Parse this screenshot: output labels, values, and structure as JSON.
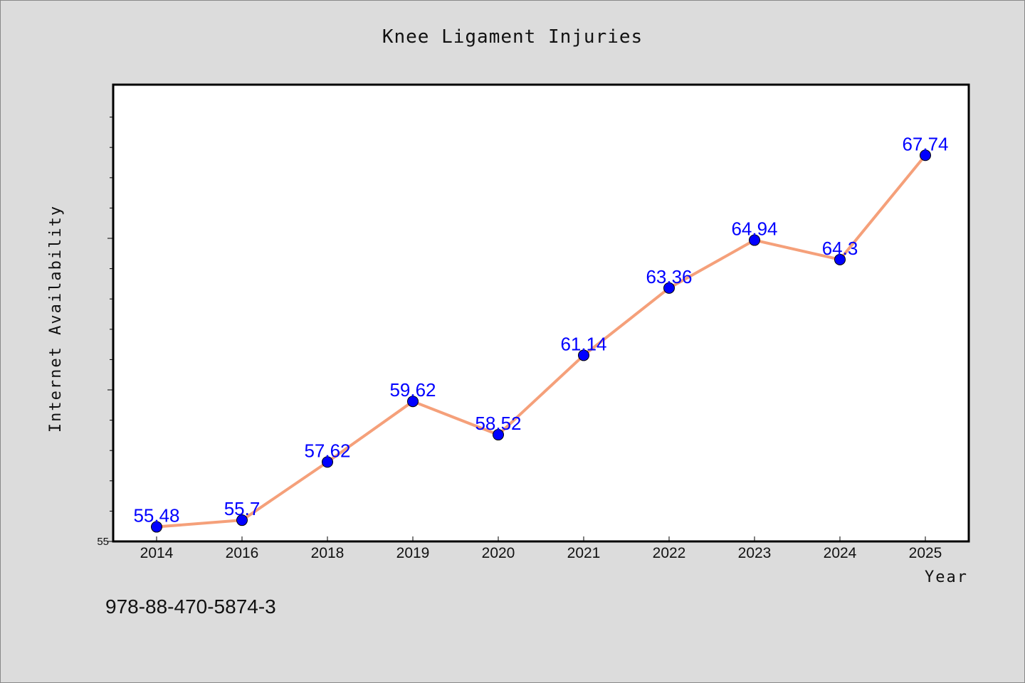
{
  "chart_data": {
    "type": "line",
    "title": "Knee Ligament Injuries",
    "xlabel": "Year",
    "ylabel": "Internet Availability",
    "categories": [
      "2014",
      "2016",
      "2018",
      "2019",
      "2020",
      "2021",
      "2022",
      "2023",
      "2024",
      "2025"
    ],
    "series": [
      {
        "values": [
          55.48,
          55.7,
          57.62,
          59.62,
          58.52,
          61.14,
          63.36,
          64.94,
          64.3,
          67.74
        ],
        "data_labels": [
          "55.48",
          "55.7",
          "57.62",
          "59.62",
          "58.52",
          "61.14",
          "63.36",
          "64.94",
          "64.3",
          "67.74"
        ],
        "line_color": "#f5a07a",
        "marker_color": "#0000ff"
      }
    ],
    "ylim": [
      55,
      70
    ],
    "ytick_labels": [
      "55"
    ],
    "grid": false,
    "background": "#dcdcdc",
    "plot_background": "#ffffff"
  },
  "footer_text": "978-88-470-5874-3"
}
